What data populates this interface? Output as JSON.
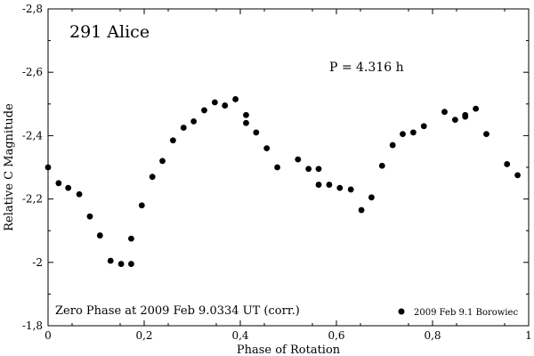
{
  "chart_data": {
    "type": "scatter",
    "title": "291 Alice",
    "annotation_period": "P = 4.316 h",
    "annotation_zero_phase": "Zero Phase at 2009 Feb 9.0334 UT (corr.)",
    "xlabel": "Phase of Rotation",
    "ylabel": "Relative C Magnitude",
    "xlim": [
      0,
      1
    ],
    "ylim": [
      -1.8,
      -2.8
    ],
    "y_axis_inverted": true,
    "x_ticks": [
      0,
      0.2,
      0.4,
      0.6,
      0.8,
      1
    ],
    "x_tick_labels": [
      "0",
      "0,2",
      "0,4",
      "0,6",
      "0,8",
      "1"
    ],
    "y_ticks": [
      -1.8,
      -2.0,
      -2.2,
      -2.4,
      -2.6,
      -2.8
    ],
    "y_tick_labels": [
      "-1,8",
      "-2",
      "-2,2",
      "-2,4",
      "-2,6",
      "-2,8"
    ],
    "grid": false,
    "legend_position": "bottom-right",
    "series": [
      {
        "name": "2009 Feb 9.1 Borowiec",
        "color": "#000000",
        "x": [
          0.0,
          0.022,
          0.042,
          0.065,
          0.087,
          0.108,
          0.13,
          0.152,
          0.173,
          0.173,
          0.195,
          0.217,
          0.238,
          0.26,
          0.282,
          0.303,
          0.325,
          0.347,
          0.368,
          0.39,
          0.412,
          0.412,
          0.433,
          0.455,
          0.477,
          0.52,
          0.542,
          0.563,
          0.563,
          0.585,
          0.607,
          0.63,
          0.652,
          0.673,
          0.695,
          0.717,
          0.738,
          0.76,
          0.782,
          0.825,
          0.847,
          0.868,
          0.868,
          0.89,
          0.912,
          0.955,
          0.977
        ],
        "y": [
          -2.3,
          -2.25,
          -2.235,
          -2.215,
          -2.145,
          -2.085,
          -2.005,
          -1.995,
          -1.995,
          -2.075,
          -2.18,
          -2.27,
          -2.32,
          -2.385,
          -2.425,
          -2.445,
          -2.48,
          -2.505,
          -2.495,
          -2.515,
          -2.44,
          -2.465,
          -2.41,
          -2.36,
          -2.3,
          -2.325,
          -2.295,
          -2.245,
          -2.295,
          -2.245,
          -2.235,
          -2.23,
          -2.165,
          -2.205,
          -2.305,
          -2.37,
          -2.405,
          -2.41,
          -2.43,
          -2.475,
          -2.45,
          -2.46,
          -2.465,
          -2.485,
          -2.405,
          -2.31,
          -2.275
        ]
      }
    ]
  }
}
